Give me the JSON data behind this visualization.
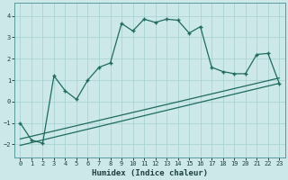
{
  "xlabel": "Humidex (Indice chaleur)",
  "ylabel": "",
  "bg_color": "#cce8e8",
  "grid_color": "#aad4d4",
  "line_color": "#1e6b5e",
  "xlim": [
    -0.5,
    23.5
  ],
  "ylim": [
    -2.6,
    4.6
  ],
  "xticks": [
    0,
    1,
    2,
    3,
    4,
    5,
    6,
    7,
    8,
    9,
    10,
    11,
    12,
    13,
    14,
    15,
    16,
    17,
    18,
    19,
    20,
    21,
    22,
    23
  ],
  "yticks": [
    -2,
    -1,
    0,
    1,
    2,
    3,
    4
  ],
  "main_x": [
    0,
    1,
    2,
    3,
    4,
    5,
    6,
    7,
    8,
    9,
    10,
    11,
    12,
    13,
    14,
    15,
    16,
    17,
    18,
    19,
    20,
    21,
    22,
    23
  ],
  "main_y": [
    -1.0,
    -1.8,
    -1.95,
    1.2,
    0.5,
    0.1,
    1.0,
    1.6,
    1.8,
    3.65,
    3.3,
    3.85,
    3.7,
    3.85,
    3.8,
    3.2,
    3.5,
    1.6,
    1.4,
    1.3,
    1.3,
    2.2,
    2.25,
    0.85
  ],
  "trend1_x": [
    0,
    23
  ],
  "trend1_y": [
    -2.05,
    0.85
  ],
  "trend2_x": [
    0,
    23
  ],
  "trend2_y": [
    -1.75,
    1.1
  ]
}
